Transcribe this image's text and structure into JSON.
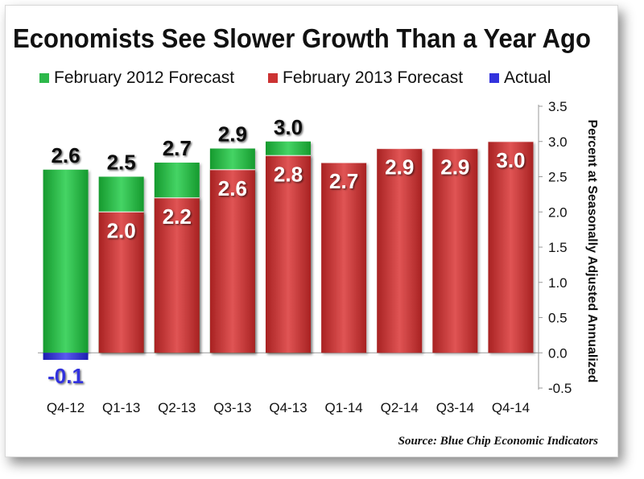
{
  "chart_data": {
    "type": "bar",
    "title": "Economists See Slower Growth Than a Year Ago",
    "ylabel": "Percent at Seasonally Adjusted Annualized",
    "xlabel": "",
    "source": "Source:  Blue Chip Economic Indicators",
    "categories": [
      "Q4-12",
      "Q1-13",
      "Q2-13",
      "Q3-13",
      "Q4-13",
      "Q1-14",
      "Q2-14",
      "Q3-14",
      "Q4-14"
    ],
    "yticks": [
      "3.5",
      "3.0",
      "2.5",
      "2.0",
      "1.5",
      "1.0",
      "0.5",
      "0.0",
      "-0.5"
    ],
    "ylim": [
      -0.5,
      3.5
    ],
    "legend_position": "top",
    "series": [
      {
        "name": "February 2012 Forecast",
        "color": "#2db84a",
        "values": [
          2.6,
          2.5,
          2.7,
          2.9,
          3.0,
          null,
          null,
          null,
          null
        ],
        "labels": [
          "2.6",
          "2.5",
          "2.7",
          "2.9",
          "3.0",
          "",
          "",
          "",
          ""
        ]
      },
      {
        "name": "February 2013 Forecast",
        "color": "#cc3333",
        "values": [
          null,
          2.0,
          2.2,
          2.6,
          2.8,
          2.7,
          2.9,
          2.9,
          3.0
        ],
        "labels": [
          "",
          "2.0",
          "2.2",
          "2.6",
          "2.8",
          "2.7",
          "2.9",
          "2.9",
          "3.0"
        ]
      },
      {
        "name": "Actual",
        "color": "#3333dd",
        "values": [
          -0.1,
          null,
          null,
          null,
          null,
          null,
          null,
          null,
          null
        ],
        "labels": [
          "-0.1",
          "",
          "",
          "",
          "",
          "",
          "",
          "",
          ""
        ]
      }
    ]
  }
}
